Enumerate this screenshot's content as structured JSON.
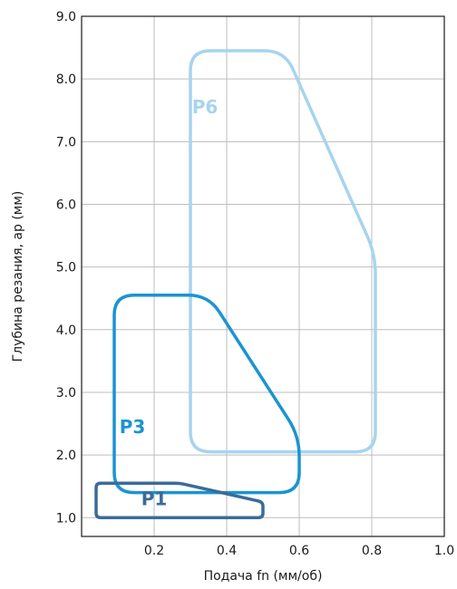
{
  "chart_data": {
    "type": "area",
    "title": "",
    "xlabel": "Подача fn (мм/об)",
    "ylabel": "Глубина резания, ap (мм)",
    "xlim": [
      0.0,
      1.0
    ],
    "ylim": [
      0.7,
      9.0
    ],
    "x_ticks": [
      "0.2",
      "0.4",
      "0.6",
      "0.8",
      "1.0"
    ],
    "x_tick_values": [
      0.2,
      0.4,
      0.6,
      0.8,
      1.0
    ],
    "y_ticks": [
      "1.0",
      "2.0",
      "3.0",
      "4.0",
      "5.0",
      "6.0",
      "7.0",
      "8.0",
      "9.0"
    ],
    "y_tick_values": [
      1.0,
      2.0,
      3.0,
      4.0,
      5.0,
      6.0,
      7.0,
      8.0,
      9.0
    ],
    "grid": true,
    "series": [
      {
        "name": "P1",
        "color": "#3b6b9a",
        "label_at": [
          0.2,
          1.2
        ],
        "outline": [
          [
            0.04,
            1.0
          ],
          [
            0.04,
            1.55
          ],
          [
            0.27,
            1.55
          ],
          [
            0.5,
            1.25
          ],
          [
            0.5,
            1.0
          ]
        ]
      },
      {
        "name": "P3",
        "color": "#1b94d2",
        "label_at": [
          0.14,
          2.35
        ],
        "outline": [
          [
            0.09,
            1.4
          ],
          [
            0.09,
            4.55
          ],
          [
            0.35,
            4.55
          ],
          [
            0.6,
            2.3
          ],
          [
            0.6,
            1.4
          ]
        ]
      },
      {
        "name": "P6",
        "color": "#a7d4ee",
        "label_at": [
          0.34,
          7.45
        ],
        "outline": [
          [
            0.3,
            2.05
          ],
          [
            0.3,
            8.45
          ],
          [
            0.56,
            8.45
          ],
          [
            0.81,
            5.2
          ],
          [
            0.81,
            2.05
          ]
        ]
      }
    ]
  }
}
